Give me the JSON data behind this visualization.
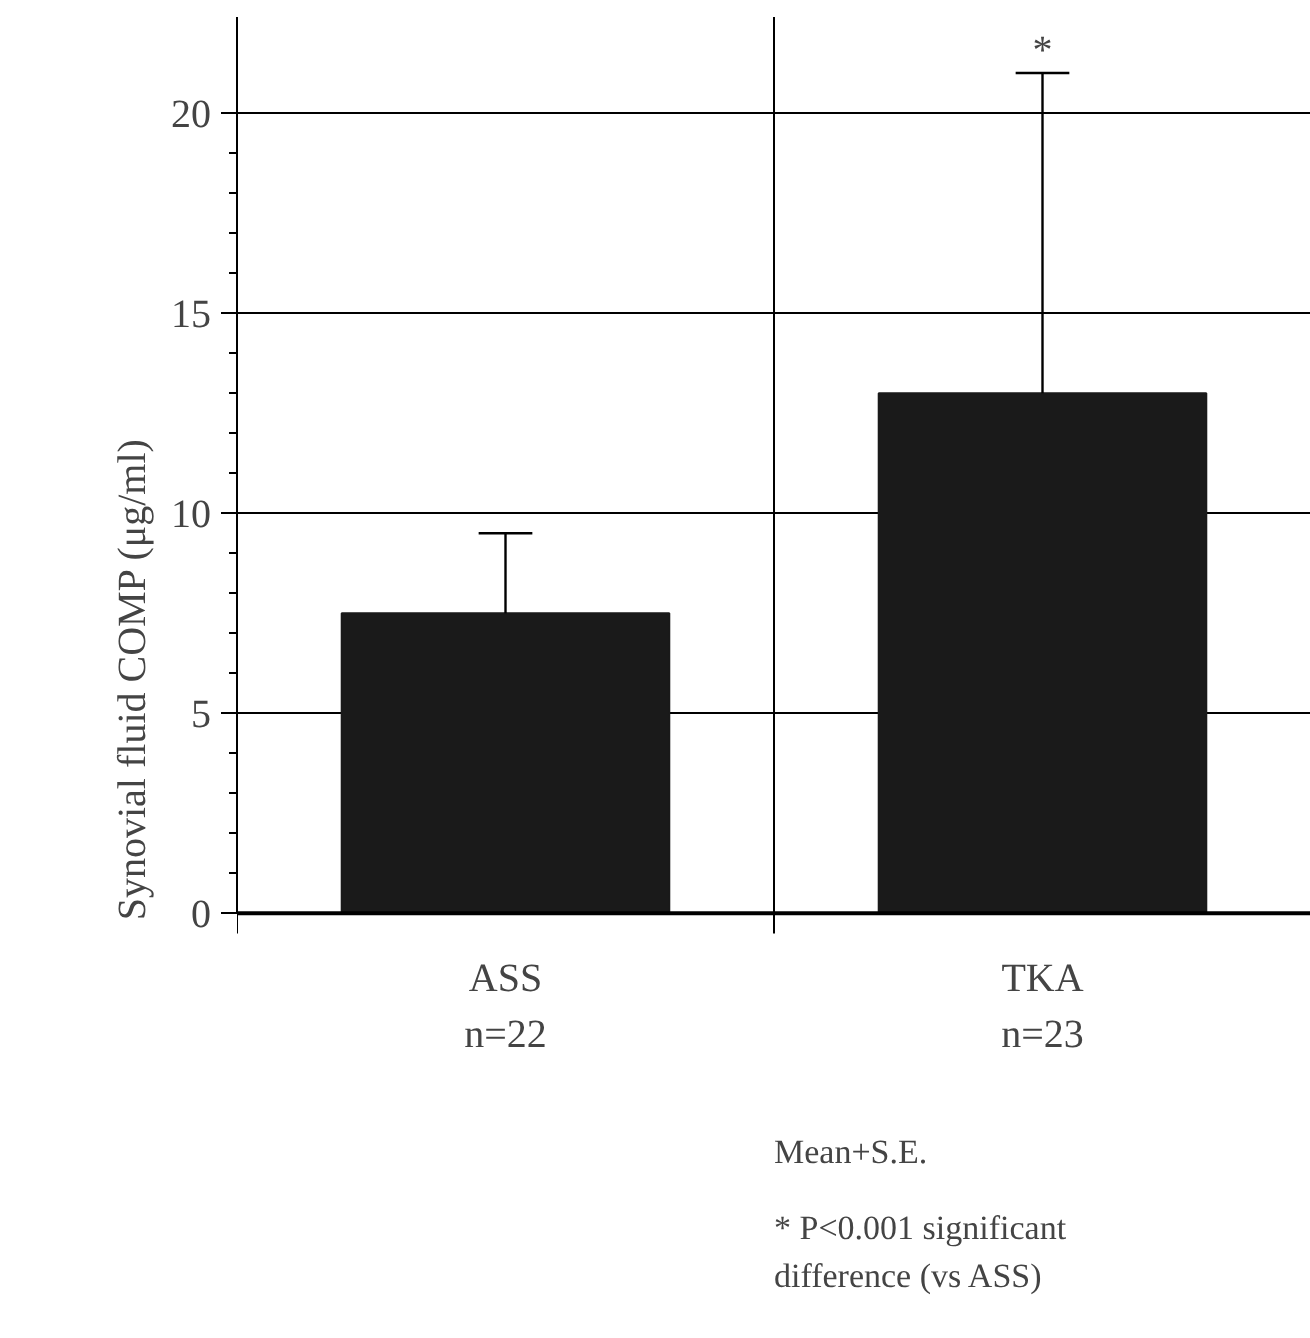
{
  "chart_data": {
    "type": "bar",
    "categories": [
      "ASS\nn=22",
      "TKA\nn=23"
    ],
    "values": [
      7.5,
      13.0
    ],
    "color": "#1a1a1a",
    "errors": [
      [
        7.5,
        9.5
      ],
      [
        13.0,
        21.0
      ]
    ],
    "ylabel": "Synovial fluid COMP  (μg/ml)",
    "ylim": [
      0,
      20
    ],
    "yticks": [
      0,
      5,
      10,
      15,
      20
    ],
    "grid": true,
    "annotations": [
      {
        "text": "*",
        "x": "TKA\nn=23",
        "y": 21
      },
      "Mean+S.E.",
      "* P<0.001 significant difference (vs ASS)"
    ]
  }
}
